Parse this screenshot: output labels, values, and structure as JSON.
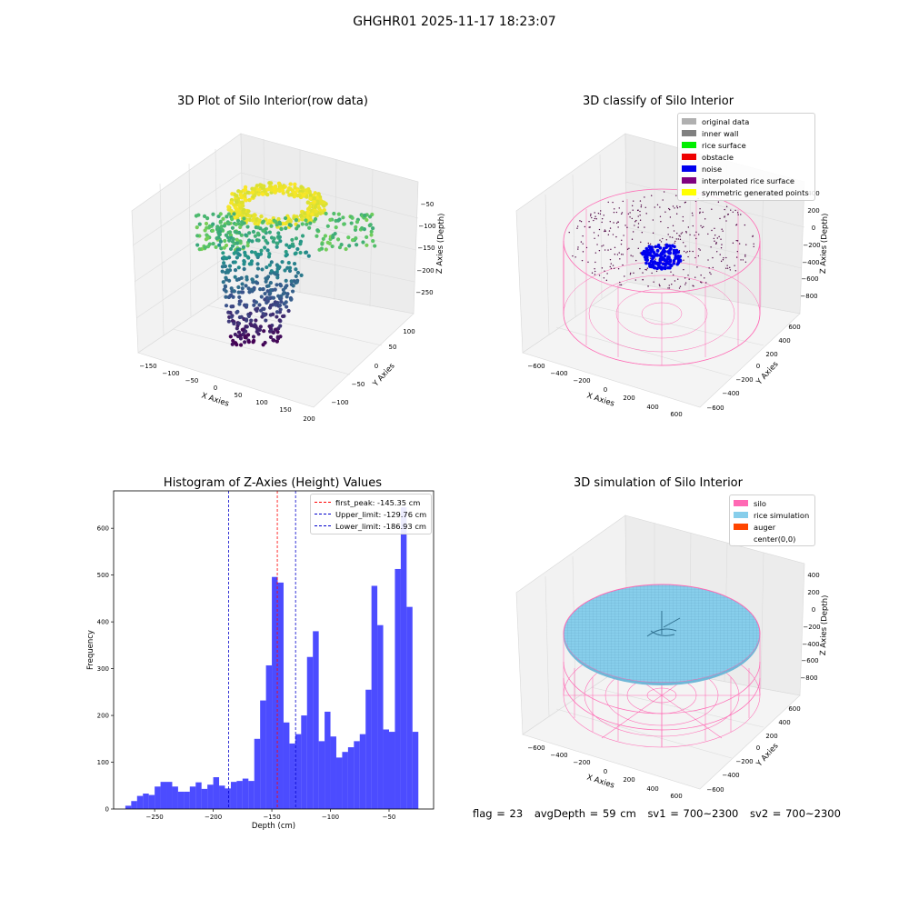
{
  "suptitle": "GHGHR01 2025-11-17 18:23:07",
  "panels": {
    "raw": {
      "title": "3D Plot of Silo Interior(row data)",
      "xlabel": "X Axies",
      "ylabel": "Y Axies",
      "zlabel": "Z Axies (Depth)",
      "xticks": [
        "−150",
        "−100",
        "−50",
        "0",
        "50",
        "100",
        "150",
        "200"
      ],
      "yticks": [
        "100",
        "50",
        "0",
        "−50",
        "−100"
      ],
      "zticks": [
        "−50",
        "−100",
        "−150",
        "−200",
        "−250"
      ]
    },
    "classify": {
      "title": "3D classify of Silo Interior",
      "xlabel": "X Axies",
      "ylabel": "Y Axies",
      "zlabel": "Z Axies (Depth)",
      "xticks": [
        "−600",
        "−400",
        "−200",
        "0",
        "200",
        "400",
        "600"
      ],
      "yticks": [
        "600",
        "400",
        "200",
        "0",
        "−200",
        "−400",
        "−600"
      ],
      "zticks": [
        "400",
        "200",
        "0",
        "−200",
        "−400",
        "−600",
        "−800"
      ],
      "legend": [
        {
          "label": "original data",
          "color": "#b0b0b0"
        },
        {
          "label": "inner wall",
          "color": "#808080"
        },
        {
          "label": "rice surface",
          "color": "#00ee00"
        },
        {
          "label": "obstacle",
          "color": "#ee0000"
        },
        {
          "label": "noise",
          "color": "#0000ee"
        },
        {
          "label": "interpolated rice surface",
          "color": "#800080"
        },
        {
          "label": "symmetric generated points",
          "color": "#ffff00"
        }
      ]
    },
    "simulation": {
      "title": "3D simulation of Silo Interior",
      "xlabel": "X Axies",
      "ylabel": "Y Axies",
      "zlabel": "Z Axies (Depth)",
      "xticks": [
        "−600",
        "−400",
        "−200",
        "0",
        "200",
        "400",
        "600"
      ],
      "yticks": [
        "600",
        "400",
        "200",
        "0",
        "−200",
        "−400",
        "−600"
      ],
      "zticks": [
        "400",
        "200",
        "0",
        "−200",
        "−400",
        "−600",
        "−800"
      ],
      "legend": [
        {
          "label": "silo",
          "color": "#ff69b4"
        },
        {
          "label": "rice simulation",
          "color": "#87ceeb"
        },
        {
          "label": "auger",
          "color": "#ff4500"
        },
        {
          "label": "center(0,0)",
          "color": "#ffffff"
        }
      ]
    }
  },
  "status": {
    "flag": "flag = 23",
    "avg": "avgDepth = 59 cm",
    "sv1": "sv1 = 700~2300",
    "sv2": "sv2 = 700~2300"
  },
  "chart_data": {
    "type": "bar",
    "title": "Histogram of Z-Axies (Height) Values",
    "xlabel": "Depth (cm)",
    "ylabel": "Frequency",
    "xlim": [
      -285,
      -12
    ],
    "ylim": [
      0,
      680
    ],
    "xticks": [
      -250,
      -200,
      -150,
      -100,
      -50
    ],
    "yticks": [
      0,
      100,
      200,
      300,
      400,
      500,
      600
    ],
    "bar_color": "#0000ff",
    "bin_start": -275,
    "bin_width": 5,
    "values": [
      7,
      17,
      28,
      33,
      30,
      48,
      58,
      58,
      48,
      37,
      37,
      48,
      57,
      43,
      52,
      68,
      50,
      44,
      58,
      60,
      65,
      60,
      150,
      232,
      307,
      496,
      484,
      185,
      140,
      160,
      200,
      325,
      380,
      145,
      208,
      155,
      110,
      122,
      132,
      145,
      160,
      255,
      477,
      393,
      170,
      165,
      513,
      645,
      432,
      165
    ],
    "vlines": [
      {
        "value": -145.35,
        "color": "#ff0000",
        "label": "first_peak: -145.35 cm"
      },
      {
        "value": -129.76,
        "color": "#0000cc",
        "label": "Upper_limit: -129.76 cm"
      },
      {
        "value": -186.93,
        "color": "#0000cc",
        "label": "Lower_limit: -186.93 cm"
      }
    ]
  }
}
